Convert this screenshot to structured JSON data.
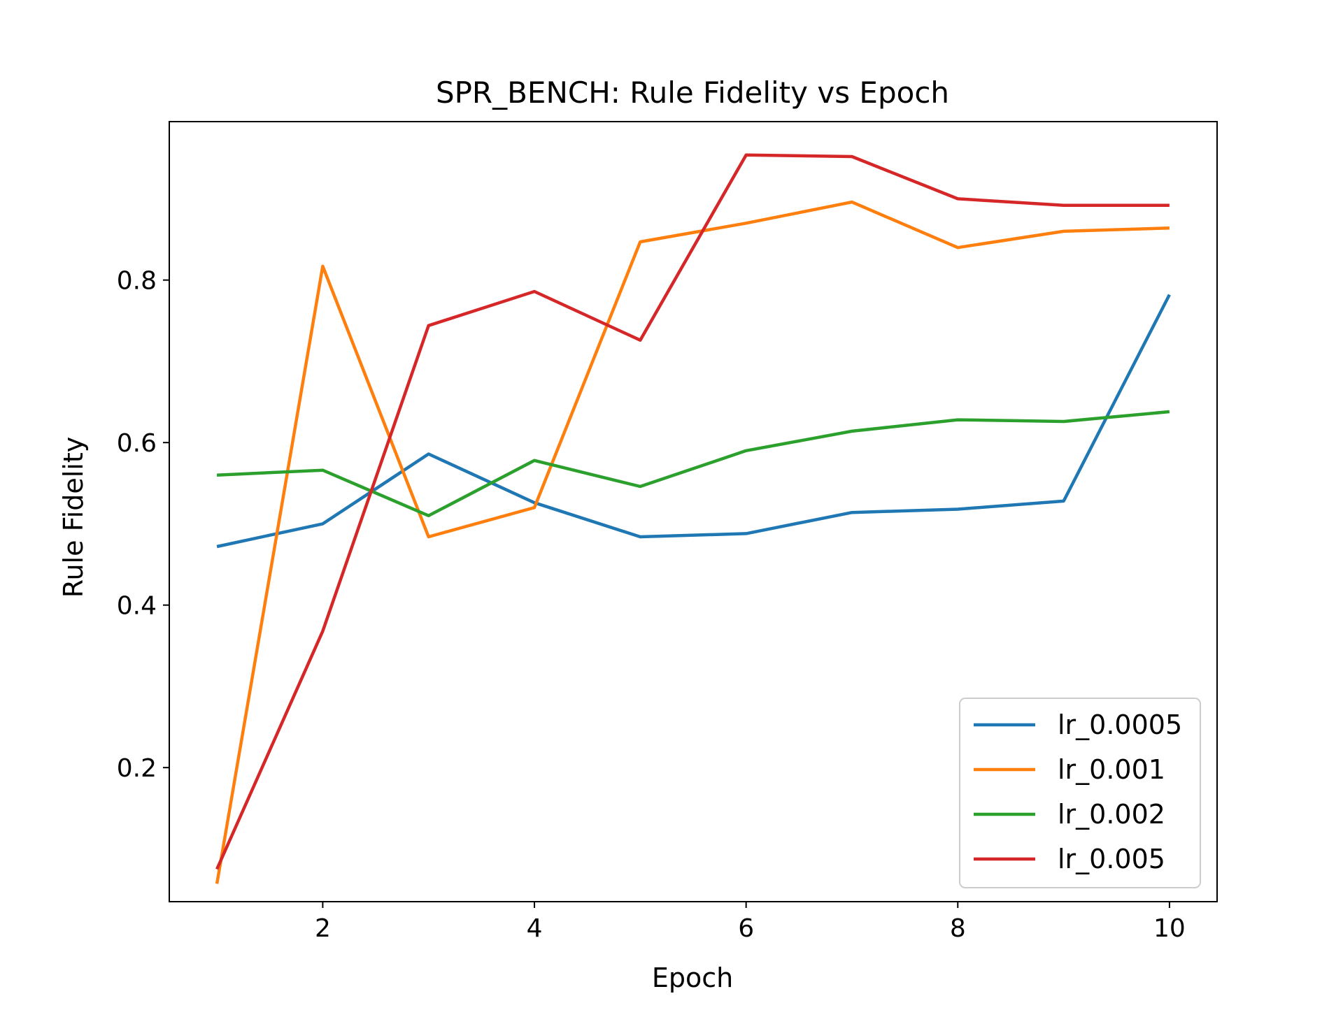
{
  "chart_data": {
    "type": "line",
    "title": "SPR_BENCH: Rule Fidelity vs Epoch",
    "xlabel": "Epoch",
    "ylabel": "Rule Fidelity",
    "xlim": [
      0.55,
      10.45
    ],
    "ylim": [
      0.035,
      0.995
    ],
    "xticks": [
      2,
      4,
      6,
      8,
      10
    ],
    "xtick_labels": [
      "2",
      "4",
      "6",
      "8",
      "10"
    ],
    "yticks": [
      0.2,
      0.4,
      0.6,
      0.8
    ],
    "ytick_labels": [
      "0.2",
      "0.4",
      "0.6",
      "0.8"
    ],
    "grid": false,
    "legend_position": "bottom-right",
    "x": [
      1,
      2,
      3,
      4,
      5,
      6,
      7,
      8,
      9,
      10
    ],
    "series": [
      {
        "name": "lr_0.0005",
        "color": "#1f77b4",
        "values": [
          0.472,
          0.5,
          0.586,
          0.526,
          0.484,
          0.488,
          0.514,
          0.518,
          0.528,
          0.782
        ]
      },
      {
        "name": "lr_0.001",
        "color": "#ff7f0e",
        "values": [
          0.057,
          0.817,
          0.484,
          0.52,
          0.847,
          0.87,
          0.896,
          0.84,
          0.86,
          0.864
        ]
      },
      {
        "name": "lr_0.002",
        "color": "#2ca02c",
        "values": [
          0.56,
          0.566,
          0.51,
          0.578,
          0.546,
          0.59,
          0.614,
          0.628,
          0.626,
          0.638
        ]
      },
      {
        "name": "lr_0.005",
        "color": "#d62728",
        "values": [
          0.075,
          0.368,
          0.744,
          0.786,
          0.726,
          0.954,
          0.952,
          0.9,
          0.892,
          0.892
        ]
      }
    ]
  }
}
